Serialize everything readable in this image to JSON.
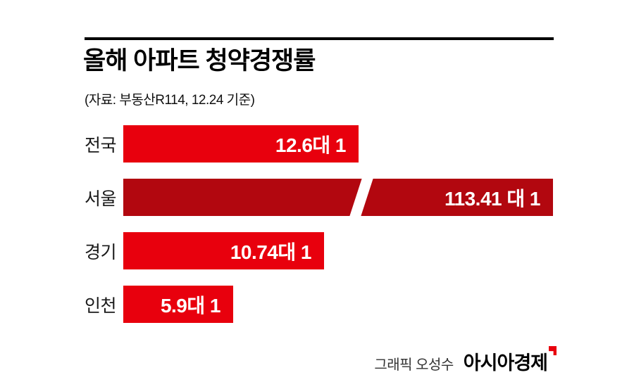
{
  "chart_data": {
    "type": "bar",
    "orientation": "horizontal",
    "title": "올해 아파트 청약경쟁률",
    "subtitle": "(자료: 부동산R114, 12.24 기준)",
    "categories": [
      "전국",
      "서울",
      "경기",
      "인천"
    ],
    "values": [
      12.6,
      113.41,
      10.74,
      5.9
    ],
    "value_labels": [
      "12.6대 1",
      "113.41 대 1",
      "10.74대 1",
      "5.9대 1"
    ],
    "unit": "대 1",
    "bar_colors": [
      "#e8000d",
      "#b2070f",
      "#e8000d",
      "#e8000d"
    ],
    "broken_bar_index": 1,
    "legend": "none",
    "grid": false,
    "xlim_note": "Seoul bar truncated with axis-break slash"
  },
  "colors": {
    "primary_red": "#e8000d",
    "dark_red": "#b2070f",
    "text_black": "#000000",
    "value_text": "#ffffff"
  },
  "footer": {
    "credit": "그래픽 오성수",
    "brand": "아시아경제"
  }
}
